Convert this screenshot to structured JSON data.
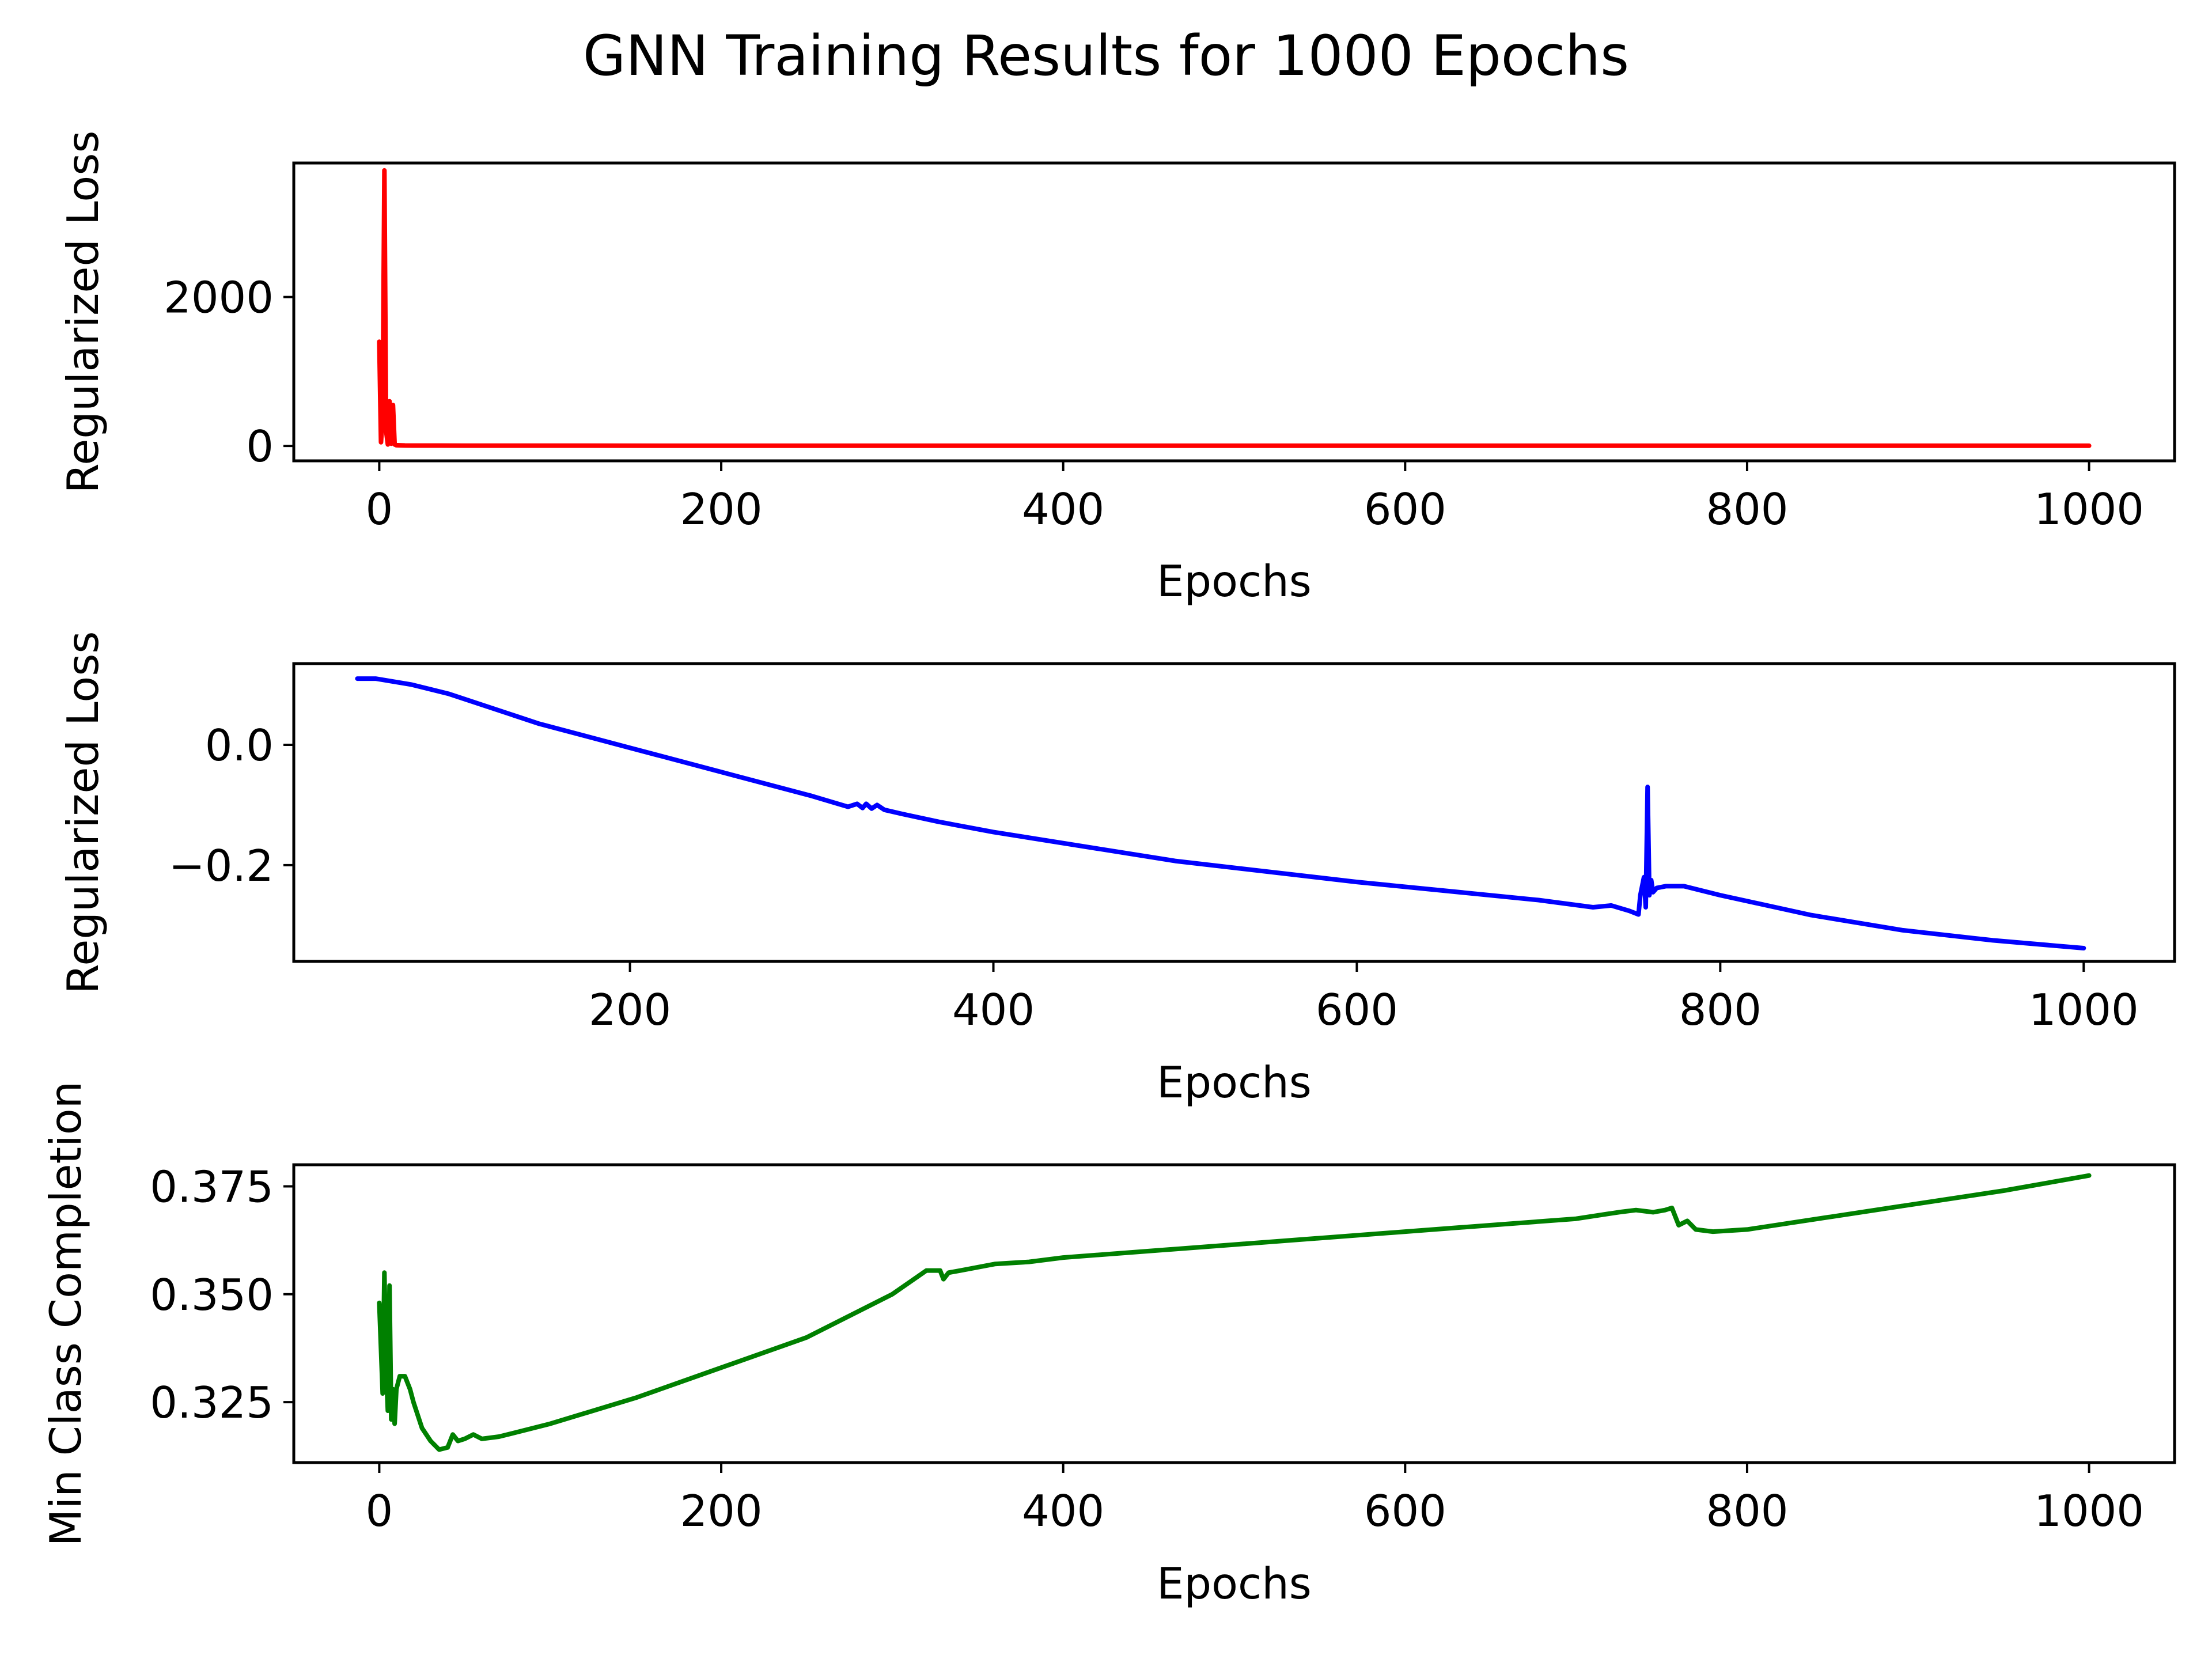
{
  "title": "GNN Training Results for 1000 Epochs",
  "chart_data": [
    {
      "type": "line",
      "xlabel": "Epochs",
      "ylabel": "Regularized Loss",
      "xlim": [
        -50,
        1050
      ],
      "ylim": [
        -200,
        3800
      ],
      "xticks": [
        0,
        200,
        400,
        600,
        800,
        1000
      ],
      "xtick_labels": [
        "0",
        "200",
        "400",
        "600",
        "800",
        "1000"
      ],
      "yticks": [
        0,
        2000
      ],
      "ytick_labels": [
        "0",
        "2000"
      ],
      "grid": false,
      "color": "#ff0000",
      "x": [
        0,
        1,
        2,
        3,
        4,
        5,
        6,
        7,
        8,
        9,
        10,
        12,
        15,
        20,
        50,
        100,
        200,
        400,
        600,
        800,
        1000
      ],
      "y": [
        1400,
        50,
        400,
        3700,
        200,
        20,
        600,
        30,
        550,
        20,
        10,
        8,
        6,
        5,
        4,
        4,
        3,
        3,
        3,
        3,
        3
      ]
    },
    {
      "type": "line",
      "xlabel": "Epochs",
      "ylabel": "Regularized Loss",
      "xlim": [
        15,
        1050
      ],
      "ylim": [
        -0.36,
        0.135
      ],
      "xticks": [
        200,
        400,
        600,
        800,
        1000
      ],
      "xtick_labels": [
        "200",
        "400",
        "600",
        "800",
        "1000"
      ],
      "yticks": [
        0.0,
        -0.2
      ],
      "ytick_labels": [
        "0.0",
        "−0.2"
      ],
      "grid": false,
      "color": "#0000ff",
      "x": [
        50,
        60,
        80,
        100,
        150,
        200,
        250,
        300,
        320,
        325,
        328,
        330,
        333,
        336,
        340,
        350,
        370,
        400,
        500,
        600,
        700,
        730,
        740,
        750,
        755,
        756,
        758,
        759,
        760,
        761,
        762,
        763,
        765,
        770,
        780,
        800,
        850,
        900,
        950,
        1000
      ],
      "y": [
        0.11,
        0.11,
        0.1,
        0.085,
        0.035,
        -0.005,
        -0.045,
        -0.085,
        -0.103,
        -0.098,
        -0.105,
        -0.098,
        -0.106,
        -0.1,
        -0.108,
        -0.115,
        -0.128,
        -0.145,
        -0.193,
        -0.228,
        -0.258,
        -0.27,
        -0.267,
        -0.276,
        -0.282,
        -0.25,
        -0.22,
        -0.27,
        -0.07,
        -0.25,
        -0.225,
        -0.245,
        -0.238,
        -0.235,
        -0.235,
        -0.25,
        -0.283,
        -0.308,
        -0.325,
        -0.338
      ]
    },
    {
      "type": "line",
      "xlabel": "Epochs",
      "ylabel": "Min Class Completion",
      "xlim": [
        -50,
        1050
      ],
      "ylim": [
        0.311,
        0.38
      ],
      "xticks": [
        0,
        200,
        400,
        600,
        800,
        1000
      ],
      "xtick_labels": [
        "0",
        "200",
        "400",
        "600",
        "800",
        "1000"
      ],
      "yticks": [
        0.325,
        0.35,
        0.375
      ],
      "ytick_labels": [
        "0.325",
        "0.350",
        "0.375"
      ],
      "grid": false,
      "color": "#008000",
      "x": [
        0,
        2,
        3,
        4,
        5,
        6,
        7,
        8,
        9,
        10,
        12,
        15,
        18,
        20,
        25,
        30,
        35,
        40,
        43,
        46,
        50,
        55,
        60,
        70,
        80,
        100,
        150,
        200,
        250,
        300,
        320,
        328,
        330,
        333,
        340,
        360,
        380,
        400,
        500,
        600,
        700,
        725,
        735,
        745,
        752,
        756,
        760,
        765,
        770,
        780,
        800,
        850,
        900,
        950,
        1000
      ],
      "y": [
        0.348,
        0.327,
        0.355,
        0.333,
        0.323,
        0.352,
        0.321,
        0.328,
        0.32,
        0.328,
        0.331,
        0.331,
        0.328,
        0.325,
        0.319,
        0.316,
        0.314,
        0.3145,
        0.3175,
        0.316,
        0.3165,
        0.3175,
        0.3165,
        0.317,
        0.318,
        0.32,
        0.326,
        0.333,
        0.34,
        0.35,
        0.3555,
        0.3555,
        0.3535,
        0.355,
        0.3555,
        0.357,
        0.3575,
        0.3585,
        0.3615,
        0.3645,
        0.3675,
        0.369,
        0.3695,
        0.369,
        0.3695,
        0.37,
        0.366,
        0.367,
        0.365,
        0.3645,
        0.365,
        0.368,
        0.371,
        0.374,
        0.3775
      ]
    }
  ]
}
